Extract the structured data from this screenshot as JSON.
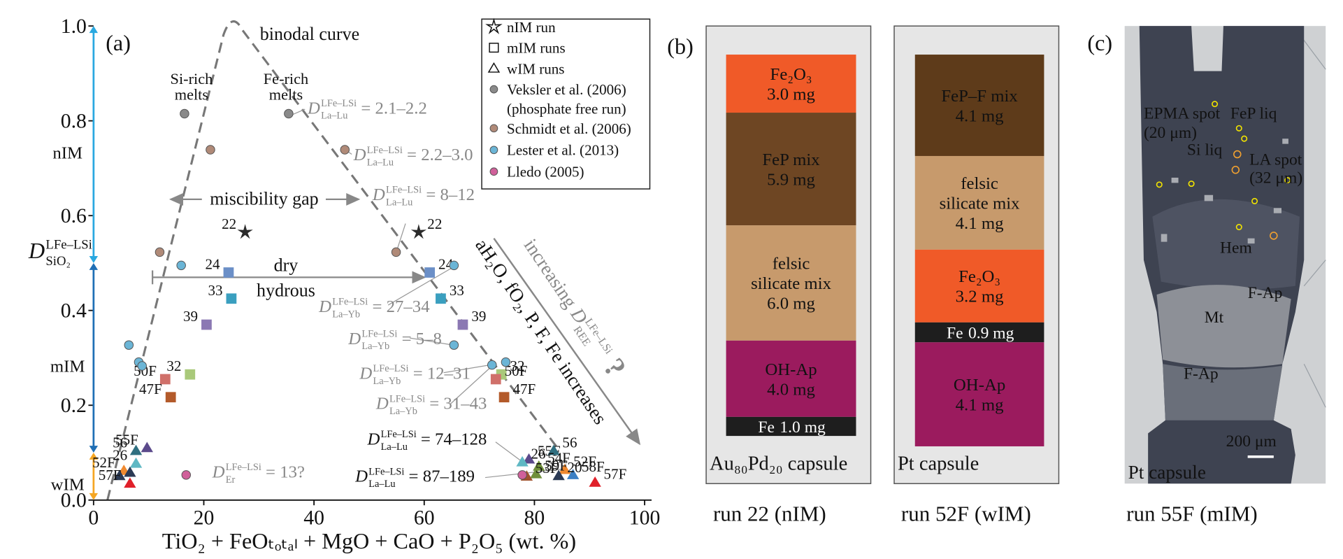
{
  "chart_data": {
    "type": "scatter",
    "panel_label": "(a)",
    "x_label": "TiO₂ + FeOₜₒₜₐₗ + MgO + CaO + P₂O₅ (wt. %)",
    "y_label": {
      "symbol": "D",
      "sup": "LFe–LSi",
      "sub": "SiO₂"
    },
    "xlim": [
      0,
      100
    ],
    "ylim": [
      0,
      1.0
    ],
    "xticks": [
      0,
      20,
      40,
      60,
      80,
      100
    ],
    "yticks": [
      {
        "value": 0,
        "label": "0.0"
      },
      0.2,
      0.4,
      0.6,
      0.8,
      {
        "value": 1,
        "label": "1.0"
      }
    ],
    "legend": "upper right",
    "regimes": [
      {
        "name": "nIM",
        "range": [
          0.5,
          1.0
        ],
        "color": "#29a8e0"
      },
      {
        "name": "mIM",
        "range": [
          0.1,
          0.5
        ],
        "color": "#1f6fb5"
      },
      {
        "name": "wIM",
        "range": [
          0,
          0.1
        ],
        "color": "#f5a623"
      }
    ],
    "series": [
      {
        "name": "nIM run",
        "marker": "star",
        "color": "#2b2b2b",
        "x": [
          27.5,
          59
        ],
        "y": [
          0.565,
          0.565
        ],
        "labels": [
          "22",
          "22"
        ]
      },
      {
        "name": "mIM runs",
        "marker": "square",
        "color": "#6b8fc7",
        "colors": [
          "#6b8fc7",
          "#6b8fc7",
          "#3a9fbf",
          "#3a9fbf",
          "#8b78b3",
          "#8b78b3",
          "#a9c97a",
          "#a9c97a",
          "#d0706a",
          "#d0706a",
          "#b35a2a",
          "#b35a2a"
        ],
        "x": [
          24.5,
          61,
          25,
          63,
          20.5,
          67,
          17.5,
          74,
          13,
          73,
          14,
          74.5
        ],
        "y": [
          0.48,
          0.48,
          0.425,
          0.425,
          0.37,
          0.37,
          0.265,
          0.265,
          0.255,
          0.255,
          0.217,
          0.217
        ],
        "labels": [
          "24",
          "24",
          "33",
          "33",
          "39",
          "39",
          "32",
          "32",
          "50F",
          "50F",
          "47F",
          "47F"
        ]
      },
      {
        "name": "wIM runs",
        "marker": "triangle",
        "color": "#5b4a8b",
        "colors": [
          "#5b4a8b",
          "#2f6f80",
          "#5fb8c4",
          "#f08a30",
          "#2b3a55",
          "#2b3a55",
          "#e0202a",
          "#5b4a8b",
          "#2f6f80",
          "#5fb8c4",
          "#6f8f3a",
          "#f08a30",
          "#3b7fc4",
          "#e0202a",
          "#6f8f3a",
          "#2b3a55",
          "#a0522d"
        ],
        "x": [
          9.7,
          7.7,
          7.7,
          5.5,
          6.6,
          4.7,
          6.6,
          79,
          83.5,
          77.8,
          80.8,
          85.5,
          87,
          91,
          80.3,
          84.4,
          78.6
        ],
        "y": [
          0.11,
          0.104,
          0.077,
          0.062,
          0.058,
          0.051,
          0.035,
          0.086,
          0.104,
          0.08,
          0.071,
          0.064,
          0.053,
          0.037,
          0.055,
          0.051,
          0.05
        ],
        "labels": [
          "55F",
          "56",
          "26",
          "52F",
          null,
          null,
          "57F",
          "55F",
          "56",
          "26",
          "54F",
          "52F",
          "58F",
          "57F",
          "59F",
          "20",
          "53F"
        ]
      },
      {
        "name": "Veksler et al. (2006)",
        "name_line2": "(phosphate free run)",
        "marker": "circle",
        "color": "#8a8a8a",
        "x": [
          16.5,
          35.4
        ],
        "y": [
          0.815,
          0.815
        ]
      },
      {
        "name": "Schmidt et al. (2006)",
        "marker": "circle",
        "color": "#b08a78",
        "x": [
          21.2,
          45.6,
          12,
          54.9
        ],
        "y": [
          0.739,
          0.739,
          0.523,
          0.523
        ]
      },
      {
        "name": "Lester et al. (2013)",
        "marker": "circle",
        "color": "#6bb5d6",
        "x": [
          15.9,
          65.4,
          6.4,
          8.2,
          8.8,
          72.3,
          74.8,
          65.4
        ],
        "y": [
          0.495,
          0.495,
          0.327,
          0.291,
          0.283,
          0.285,
          0.291,
          0.327
        ]
      },
      {
        "name": "Lledo (2005)",
        "marker": "circle",
        "color": "#d0609a",
        "x": [
          16.8,
          77.8
        ],
        "y": [
          0.053,
          0.053
        ]
      }
    ],
    "annotations": [
      {
        "symbol": "D",
        "sup": "LFe–LSi",
        "sub": "La–Lu",
        "text": "= 2.1–2.2",
        "color": "#888888"
      },
      {
        "symbol": "D",
        "sup": "LFe–LSi",
        "sub": "La–Lu",
        "text": "= 2.2–3.0",
        "color": "#888888"
      },
      {
        "symbol": "D",
        "sup": "LFe–LSi",
        "sub": "La–Lu",
        "text": "= 8–12",
        "color": "#888888"
      },
      {
        "symbol": "D",
        "sup": "LFe–LSi",
        "sub": "La–Yb",
        "text": "= 27–34",
        "color": "#888888"
      },
      {
        "symbol": "D",
        "sup": "LFe–LSi",
        "sub": "La–Yb",
        "text": "= 5–8",
        "color": "#888888"
      },
      {
        "symbol": "D",
        "sup": "LFe–LSi",
        "sub": "La–Yb",
        "text": "= 12–31",
        "color": "#888888"
      },
      {
        "symbol": "D",
        "sup": "LFe–LSi",
        "sub": "La–Yb",
        "text": "= 31–43",
        "color": "#888888"
      },
      {
        "symbol": "D",
        "sup": "LFe–LSi",
        "sub": "La–Lu",
        "text": "= 74–128",
        "color": "#111111"
      },
      {
        "symbol": "D",
        "sup": "LFe–LSi",
        "sub": "La–Lu",
        "text": "= 87–189",
        "color": "#111111"
      },
      {
        "symbol": "D",
        "sup": "LFe–LSi",
        "sub": "Er",
        "text": "= 13?",
        "color": "#888888"
      }
    ],
    "notes": [
      "binodal curve",
      "Si-rich",
      "melts",
      "Fe-rich",
      "melts",
      "miscibility gap",
      "dry",
      "hydrous"
    ],
    "trend_conditions": "aH₂O, fO₂, P, F, Fe increases",
    "trend_result": {
      "text": "increasing",
      "symbol": "D",
      "sub": "REE",
      "sup": "LFe–LSi",
      "end": "?"
    }
  },
  "panel_b": {
    "label": "(b)",
    "capsules": [
      {
        "layers": [
          {
            "name": "Fe₂O₃",
            "mass": "3.0 mg",
            "color": "#f05a28"
          },
          {
            "name": "FeP mix",
            "mass": "5.9 mg",
            "color": "#6e4623"
          },
          {
            "name": "felsic",
            "name2": "silicate mix",
            "mass": "6.0 mg",
            "color": "#c79a6c"
          },
          {
            "name": "OH-Ap",
            "mass": "4.0 mg",
            "color": "#9b1b5e"
          },
          {
            "name": "Fe",
            "mass": "1.0 mg",
            "color": "#1e1e1e"
          }
        ],
        "capsule": "Au₈₀Pd₂₀ capsule",
        "run": "run 22 (nIM)"
      },
      {
        "layers": [
          {
            "name": "FeP–F mix",
            "mass": "4.1 mg",
            "color": "#5e3b1a"
          },
          {
            "name": "felsic",
            "name2": "silicate mix",
            "mass": "4.1 mg",
            "color": "#c79a6c"
          },
          {
            "name": "Fe₂O₃",
            "mass": "3.2 mg",
            "color": "#f05a28"
          },
          {
            "name": "Fe",
            "mass": "0.9 mg",
            "color": "#1e1e1e"
          },
          {
            "name": "OH-Ap",
            "mass": "4.1 mg",
            "color": "#9b1b5e"
          }
        ],
        "capsule": "Pt capsule",
        "run": "run 52F (wIM)"
      }
    ]
  },
  "panel_c": {
    "label": "(c)",
    "labels": [
      "EPMA spot",
      "(20 μm)",
      "FeP liq",
      "Si liq",
      "LA spot",
      "(32 μm)",
      "Hem",
      "F-Ap",
      "Mt",
      "F-Ap"
    ],
    "scale_bar": "200 μm",
    "capsule": "Pt capsule",
    "run": "run 55F (mIM)"
  }
}
